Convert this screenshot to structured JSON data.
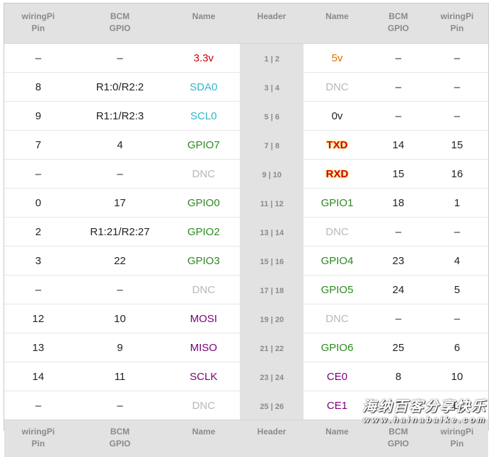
{
  "headers": [
    "wiringPi\nPin",
    "BCM\nGPIO",
    "Name",
    "Header",
    "Name",
    "BCM\nGPIO",
    "wiringPi\nPin"
  ],
  "colors": {
    "power_red": "#d10000",
    "power_orange": "#e07000",
    "i2c": "#33b5c7",
    "dnc": "#b8b8b8",
    "gpio": "#2a8a1e",
    "spi": "#7a007a",
    "uart": "#d80000",
    "plain": "#222222",
    "header_bg": "#e2e2e2"
  },
  "rows": [
    {
      "lwp": "–",
      "lbcm": "–",
      "lname": "3.3v",
      "lcolor": "power_red",
      "header": "1 | 2",
      "rname": "5v",
      "rcolor": "power_orange",
      "rbcm": "–",
      "rwp": "–"
    },
    {
      "lwp": "8",
      "lbcm": "R1:0/R2:2",
      "lname": "SDA0",
      "lcolor": "i2c",
      "header": "3 | 4",
      "rname": "DNC",
      "rcolor": "dnc",
      "rbcm": "–",
      "rwp": "–"
    },
    {
      "lwp": "9",
      "lbcm": "R1:1/R2:3",
      "lname": "SCL0",
      "lcolor": "i2c",
      "header": "5 | 6",
      "rname": "0v",
      "rcolor": "plain",
      "rbcm": "–",
      "rwp": "–"
    },
    {
      "lwp": "7",
      "lbcm": "4",
      "lname": "GPIO7",
      "lcolor": "gpio",
      "header": "7 | 8",
      "rname": "TXD",
      "rcolor": "uart",
      "rglow": true,
      "rbcm": "14",
      "rwp": "15"
    },
    {
      "lwp": "–",
      "lbcm": "–",
      "lname": "DNC",
      "lcolor": "dnc",
      "header": "9 | 10",
      "rname": "RXD",
      "rcolor": "uart",
      "rglow": true,
      "rbcm": "15",
      "rwp": "16"
    },
    {
      "lwp": "0",
      "lbcm": "17",
      "lname": "GPIO0",
      "lcolor": "gpio",
      "header": "11 | 12",
      "rname": "GPIO1",
      "rcolor": "gpio",
      "rbcm": "18",
      "rwp": "1"
    },
    {
      "lwp": "2",
      "lbcm": "R1:21/R2:27",
      "lname": "GPIO2",
      "lcolor": "gpio",
      "header": "13 | 14",
      "rname": "DNC",
      "rcolor": "dnc",
      "rbcm": "–",
      "rwp": "–"
    },
    {
      "lwp": "3",
      "lbcm": "22",
      "lname": "GPIO3",
      "lcolor": "gpio",
      "header": "15 | 16",
      "rname": "GPIO4",
      "rcolor": "gpio",
      "rbcm": "23",
      "rwp": "4"
    },
    {
      "lwp": "–",
      "lbcm": "–",
      "lname": "DNC",
      "lcolor": "dnc",
      "header": "17 | 18",
      "rname": "GPIO5",
      "rcolor": "gpio",
      "rbcm": "24",
      "rwp": "5"
    },
    {
      "lwp": "12",
      "lbcm": "10",
      "lname": "MOSI",
      "lcolor": "spi",
      "header": "19 | 20",
      "rname": "DNC",
      "rcolor": "dnc",
      "rbcm": "–",
      "rwp": "–"
    },
    {
      "lwp": "13",
      "lbcm": "9",
      "lname": "MISO",
      "lcolor": "spi",
      "header": "21 | 22",
      "rname": "GPIO6",
      "rcolor": "gpio",
      "rbcm": "25",
      "rwp": "6"
    },
    {
      "lwp": "14",
      "lbcm": "11",
      "lname": "SCLK",
      "lcolor": "spi",
      "header": "23 | 24",
      "rname": "CE0",
      "rcolor": "spi",
      "rbcm": "8",
      "rwp": "10"
    },
    {
      "lwp": "–",
      "lbcm": "–",
      "lname": "DNC",
      "lcolor": "dnc",
      "header": "25 | 26",
      "rname": "CE1",
      "rcolor": "spi",
      "rbcm": "7",
      "rwp": "11"
    }
  ],
  "watermark": {
    "text": "海纳百客分享快乐",
    "url": "www.hainabaike.com"
  }
}
